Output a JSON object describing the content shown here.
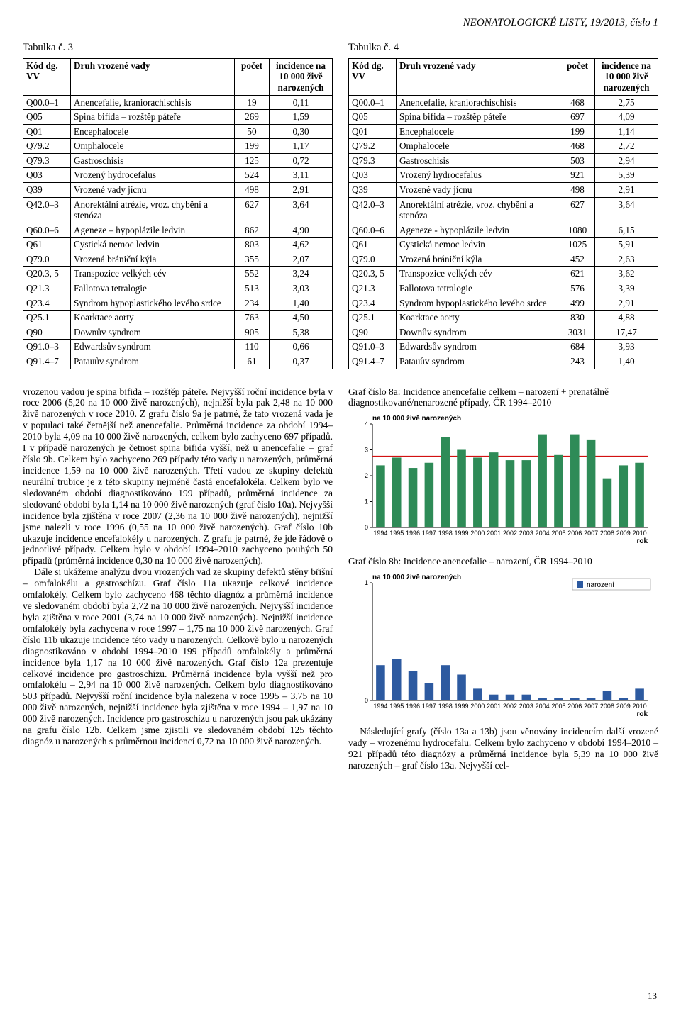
{
  "running_head": "NEONATOLOGICKÉ LISTY, 19/2013, číslo 1",
  "page_number": "13",
  "table3": {
    "caption": "Tabulka č. 3",
    "headers": {
      "code": "Kód dg. VV",
      "name": "Druh vrozené vady",
      "count": "počet",
      "incidence": "incidence na 10 000 živě narozených"
    },
    "rows": [
      {
        "code": "Q00.0–1",
        "name": "Anencefalie, kraniorachischisis",
        "count": "19",
        "inc": "0,11"
      },
      {
        "code": "Q05",
        "name": "Spina bifida – rozštěp páteře",
        "count": "269",
        "inc": "1,59"
      },
      {
        "code": "Q01",
        "name": "Encephalocele",
        "count": "50",
        "inc": "0,30"
      },
      {
        "code": "Q79.2",
        "name": "Omphalocele",
        "count": "199",
        "inc": "1,17"
      },
      {
        "code": "Q79.3",
        "name": "Gastroschisis",
        "count": "125",
        "inc": "0,72"
      },
      {
        "code": "Q03",
        "name": "Vrozený hydrocefalus",
        "count": "524",
        "inc": "3,11"
      },
      {
        "code": "Q39",
        "name": "Vrozené vady jícnu",
        "count": "498",
        "inc": "2,91"
      },
      {
        "code": "Q42.0–3",
        "name": "Anorektální atrézie, vroz. chybění a stenóza",
        "count": "627",
        "inc": "3,64"
      },
      {
        "code": "Q60.0–6",
        "name": "Ageneze – hypoplázile ledvin",
        "count": "862",
        "inc": "4,90"
      },
      {
        "code": "Q61",
        "name": "Cystická nemoc ledvin",
        "count": "803",
        "inc": "4,62"
      },
      {
        "code": "Q79.0",
        "name": "Vrozená brániční kýla",
        "count": "355",
        "inc": "2,07"
      },
      {
        "code": "Q20.3, 5",
        "name": "Transpozice velkých cév",
        "count": "552",
        "inc": "3,24"
      },
      {
        "code": "Q21.3",
        "name": "Fallotova tetralogie",
        "count": "513",
        "inc": "3,03"
      },
      {
        "code": "Q23.4",
        "name": "Syndrom hypoplastického levého srdce",
        "count": "234",
        "inc": "1,40"
      },
      {
        "code": "Q25.1",
        "name": "Koarktace aorty",
        "count": "763",
        "inc": "4,50"
      },
      {
        "code": "Q90",
        "name": "Downův syndrom",
        "count": "905",
        "inc": "5,38"
      },
      {
        "code": "Q91.0–3",
        "name": "Edwardsův syndrom",
        "count": "110",
        "inc": "0,66"
      },
      {
        "code": "Q91.4–7",
        "name": "Patauův syndrom",
        "count": "61",
        "inc": "0,37"
      }
    ]
  },
  "table4": {
    "caption": "Tabulka č. 4",
    "rows": [
      {
        "code": "Q00.0–1",
        "name": "Anencefalie, kraniorachischisis",
        "count": "468",
        "inc": "2,75"
      },
      {
        "code": "Q05",
        "name": "Spina bifida – rozštěp páteře",
        "count": "697",
        "inc": "4,09"
      },
      {
        "code": "Q01",
        "name": "Encephalocele",
        "count": "199",
        "inc": "1,14"
      },
      {
        "code": "Q79.2",
        "name": "Omphalocele",
        "count": "468",
        "inc": "2,72"
      },
      {
        "code": "Q79.3",
        "name": "Gastroschisis",
        "count": "503",
        "inc": "2,94"
      },
      {
        "code": "Q03",
        "name": "Vrozený hydrocefalus",
        "count": "921",
        "inc": "5,39"
      },
      {
        "code": "Q39",
        "name": "Vrozené vady jícnu",
        "count": "498",
        "inc": "2,91"
      },
      {
        "code": "Q42.0–3",
        "name": "Anorektální atrézie, vroz. chybění a stenóza",
        "count": "627",
        "inc": "3,64"
      },
      {
        "code": "Q60.0–6",
        "name": "Ageneze - hypoplázile ledvin",
        "count": "1080",
        "inc": "6,15"
      },
      {
        "code": "Q61",
        "name": "Cystická nemoc ledvin",
        "count": "1025",
        "inc": "5,91"
      },
      {
        "code": "Q79.0",
        "name": "Vrozená brániční kýla",
        "count": "452",
        "inc": "2,63"
      },
      {
        "code": "Q20.3, 5",
        "name": "Transpozice velkých cév",
        "count": "621",
        "inc": "3,62"
      },
      {
        "code": "Q21.3",
        "name": "Fallotova tetralogie",
        "count": "576",
        "inc": "3,39"
      },
      {
        "code": "Q23.4",
        "name": "Syndrom hypoplastického levého srdce",
        "count": "499",
        "inc": "2,91"
      },
      {
        "code": "Q25.1",
        "name": "Koarktace aorty",
        "count": "830",
        "inc": "4,88"
      },
      {
        "code": "Q90",
        "name": "Downův syndrom",
        "count": "3031",
        "inc": "17,47"
      },
      {
        "code": "Q91.0–3",
        "name": "Edwardsův syndrom",
        "count": "684",
        "inc": "3,93"
      },
      {
        "code": "Q91.4–7",
        "name": "Patauův syndrom",
        "count": "243",
        "inc": "1,40"
      }
    ]
  },
  "left_para": "vrozenou vadou je spina bifida – rozštěp páteře. Nejvyšší roční incidence byla v roce 2006 (5,20 na 10 000 živě narozených), nejnižší byla pak 2,48 na 10 000 živě narozených v roce 2010. Z grafu číslo 9a je patrné, že tato vrozená vada je v populaci také četnější než anencefalie. Průměrná incidence za období 1994–2010 byla 4,09 na 10 000 živě narozených, celkem bylo zachyceno 697 případů. I v případě narozených je četnost spina bifida vyšší, než u anencefalie – graf číslo 9b. Celkem bylo zachyceno 269 případy této vady u narozených, průměrná incidence 1,59 na 10 000 živě narozených. Třetí vadou ze skupiny defektů neurální trubice je z této skupiny nejméně častá encefalokéla. Celkem bylo ve sledovaném období diagnostikováno 199 případů, průměrná incidence za sledované období byla 1,14 na 10 000 živě narozených (graf číslo 10a). Nejvyšší incidence byla zjištěna v roce 2007 (2,36 na 10 000 živě narozených), nejnižší jsme nalezli v roce 1996 (0,55 na 10 000 živě narozených). Graf číslo 10b ukazuje incidence encefalokély u narozených. Z grafu je patrné, že jde řádově o jednotlivé případy. Celkem bylo v období 1994–2010 zachyceno pouhých 50 případů (průměrná incidence 0,30 na 10 000 živě narozených).",
  "left_para2": "Dále si ukážeme analýzu dvou vrozených vad ze skupiny defektů stěny břišní – omfalokélu a gastroschízu. Graf číslo 11a ukazuje celkové incidence omfalokély. Celkem bylo zachyceno 468 těchto diagnóz a průměrná incidence ve sledovaném období byla 2,72 na 10 000 živě narozených. Nejvyšší incidence byla zjištěna v roce 2001 (3,74 na 10 000 živě narozených). Nejnižší incidence omfalokély byla zachycena v roce 1997 – 1,75 na 10 000 živě narozených. Graf číslo 11b ukazuje incidence této vady u narozených. Celkově bylo u narozených diagnostikováno v období 1994–2010 199 případů omfalokély a průměrná incidence byla 1,17 na 10 000 živě narozených. Graf číslo 12a prezentuje celkové incidence pro gastroschízu. Průměrná incidence byla vyšší než pro omfalokélu – 2,94 na 10 000 živě narozených. Celkem bylo diagnostikováno 503 případů. Nejvyšší roční incidence byla nalezena v roce 1995 – 3,75 na 10 000 živě narozených, nejnižší incidence byla zjištěna v roce 1994 – 1,97 na 10 000 živě narozených. Incidence pro gastroschízu u narozených jsou pak ukázány na grafu číslo 12b. Celkem jsme zjistili ve sledovaném období 125 těchto diagnóz u narozených s průměrnou incidencí 0,72 na 10 000 živě narozených.",
  "graf8a_title": "Graf číslo 8a: Incidence anencefalie celkem – narození + prenatálně diagnostikované/nenarozené případy, ČR 1994–2010",
  "graf8b_title": "Graf číslo 8b: Incidence anencefalie – narození, ČR 1994–2010",
  "right_para": "Následující grafy (číslo 13a a 13b) jsou věnovány incidencím další vrozené vady – vrozenému hydrocefalu. Celkem bylo zachyceno v období 1994–2010 – 921 případů této diagnózy a průměrná incidence byla 5,39 na 10 000 živě narozených – graf číslo 13a. Nejvyšší cel-",
  "chart8a": {
    "type": "bar",
    "y_title": "na 10 000 živě narozených",
    "x_title": "rok",
    "ylim": [
      0,
      4
    ],
    "ytick_step": 1,
    "years": [
      1994,
      1995,
      1996,
      1997,
      1998,
      1999,
      2000,
      2001,
      2002,
      2003,
      2004,
      2005,
      2006,
      2007,
      2008,
      2009,
      2010
    ],
    "values": [
      2.4,
      2.7,
      2.3,
      2.5,
      3.5,
      3.0,
      2.7,
      2.9,
      2.6,
      2.6,
      3.6,
      2.8,
      3.6,
      3.4,
      1.9,
      2.4,
      2.5
    ],
    "ref_line": 2.75,
    "bar_color": "#2e8b57",
    "ref_color": "#d11111",
    "axis_color": "#000000",
    "bg": "#ffffff"
  },
  "chart8b": {
    "type": "bar",
    "y_title": "na 10 000 živě narozených",
    "x_title": "rok",
    "legend": "narození",
    "ylim": [
      0,
      1
    ],
    "yticks": [
      0,
      1
    ],
    "years": [
      1994,
      1995,
      1996,
      1997,
      1998,
      1999,
      2000,
      2001,
      2002,
      2003,
      2004,
      2005,
      2006,
      2007,
      2008,
      2009,
      2010
    ],
    "values": [
      0.3,
      0.35,
      0.25,
      0.15,
      0.3,
      0.22,
      0.1,
      0.05,
      0.05,
      0.05,
      0.02,
      0.02,
      0.02,
      0.02,
      0.08,
      0.02,
      0.1
    ],
    "bar_color": "#2d5aa0",
    "axis_color": "#000000",
    "bg": "#ffffff"
  }
}
